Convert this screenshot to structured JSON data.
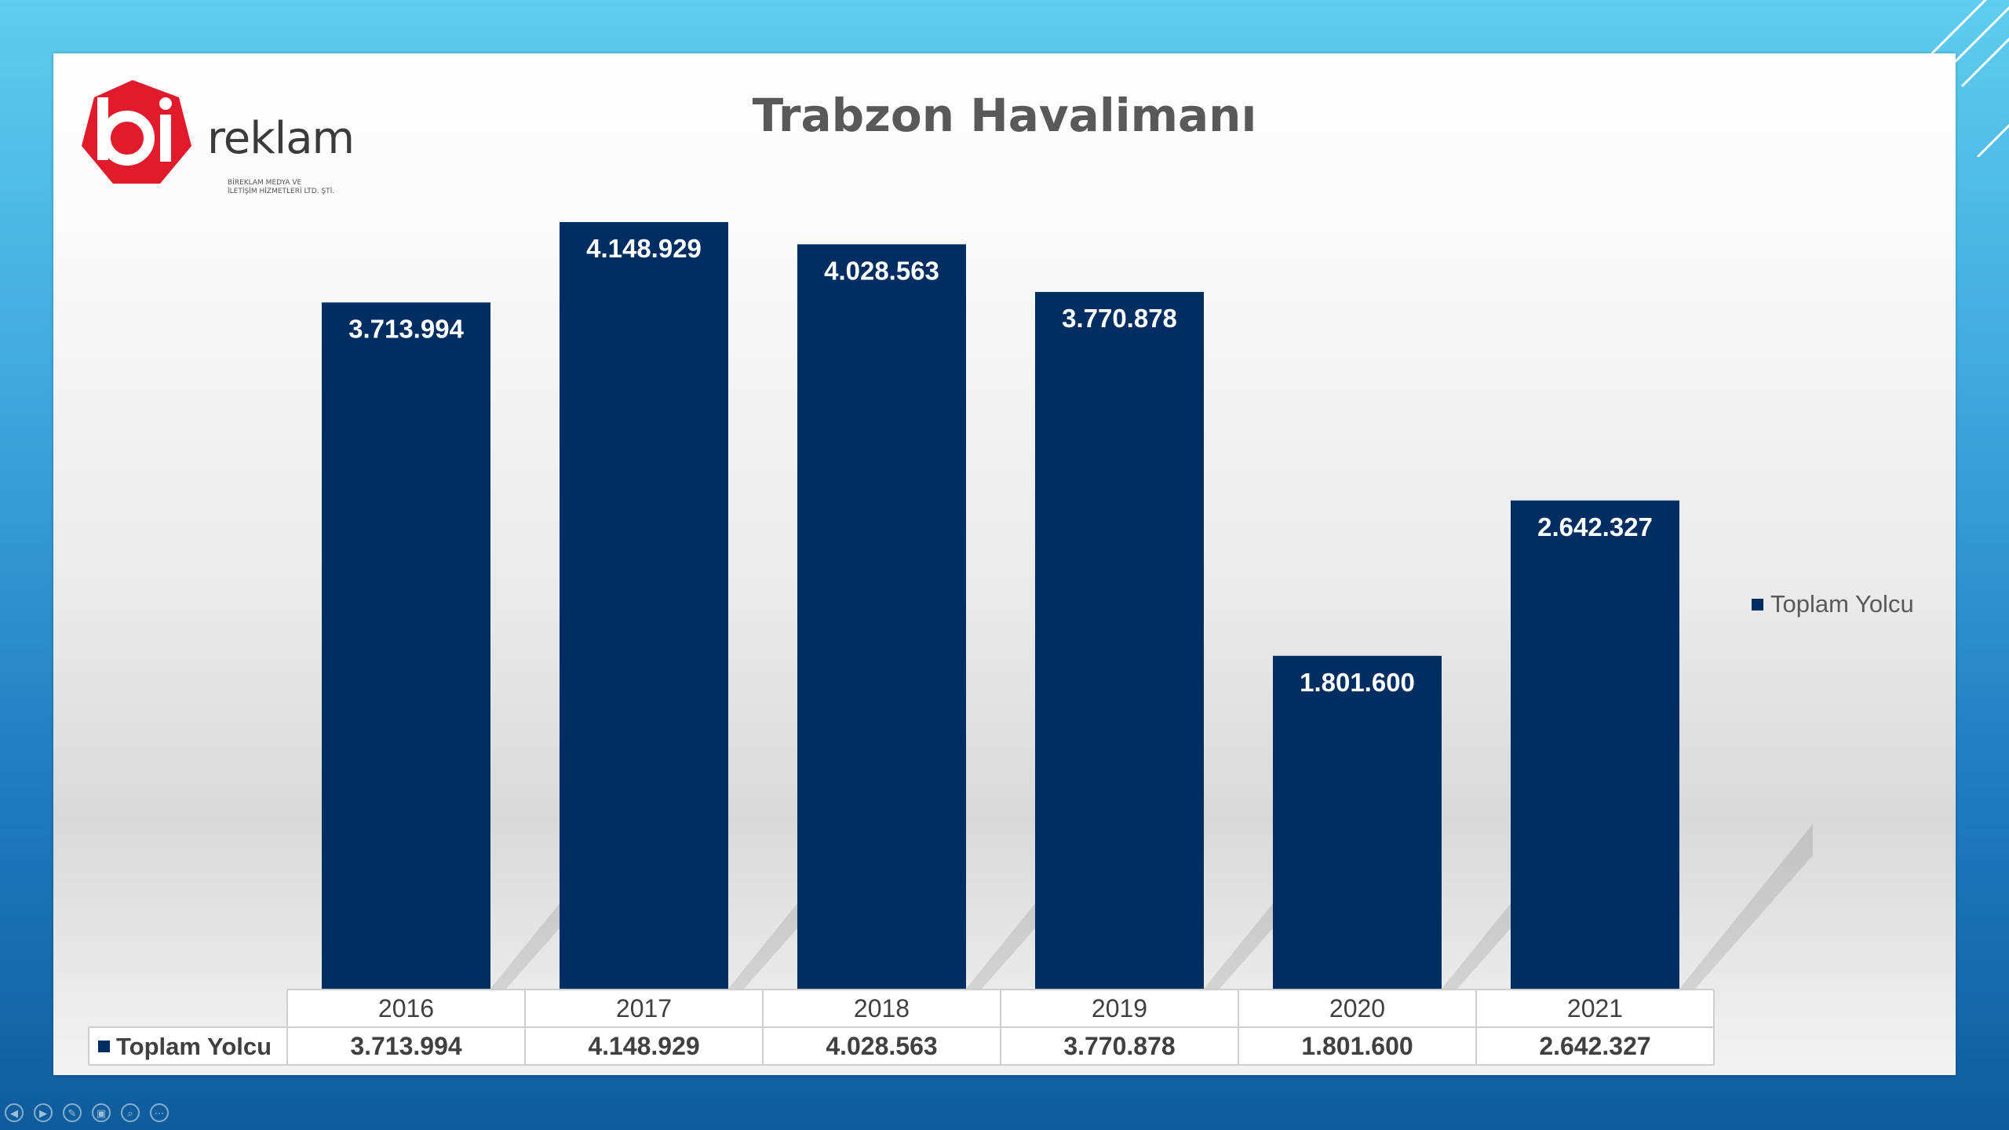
{
  "slide": {
    "logo_word": "reklam",
    "logo_sub_line1": "BİREKLAM MEDYA VE",
    "logo_sub_line2": "İLETİŞİM HİZMETLERİ LTD. ŞTİ."
  },
  "colors": {
    "bar": "#002d62",
    "title": "#595959",
    "brand_red": "#e11b2b"
  },
  "icons": [
    "prev-icon",
    "next-icon",
    "pen-icon",
    "slides-icon",
    "zoom-icon",
    "more-icon"
  ],
  "chart_data": {
    "type": "bar",
    "title": "Trabzon Havalimanı",
    "categories": [
      "2016",
      "2017",
      "2018",
      "2019",
      "2020",
      "2021"
    ],
    "series": [
      {
        "name": "Toplam Yolcu",
        "values": [
          3713994,
          4148929,
          4028563,
          3770878,
          1801600,
          2642327
        ],
        "labels": [
          "3.713.994",
          "4.148.929",
          "4.028.563",
          "3.770.878",
          "1.801.600",
          "2.642.327"
        ]
      }
    ],
    "xlabel": "",
    "ylabel": "",
    "ylim": [
      0,
      4200000
    ],
    "grid": false,
    "legend": "right",
    "data_table": true
  }
}
